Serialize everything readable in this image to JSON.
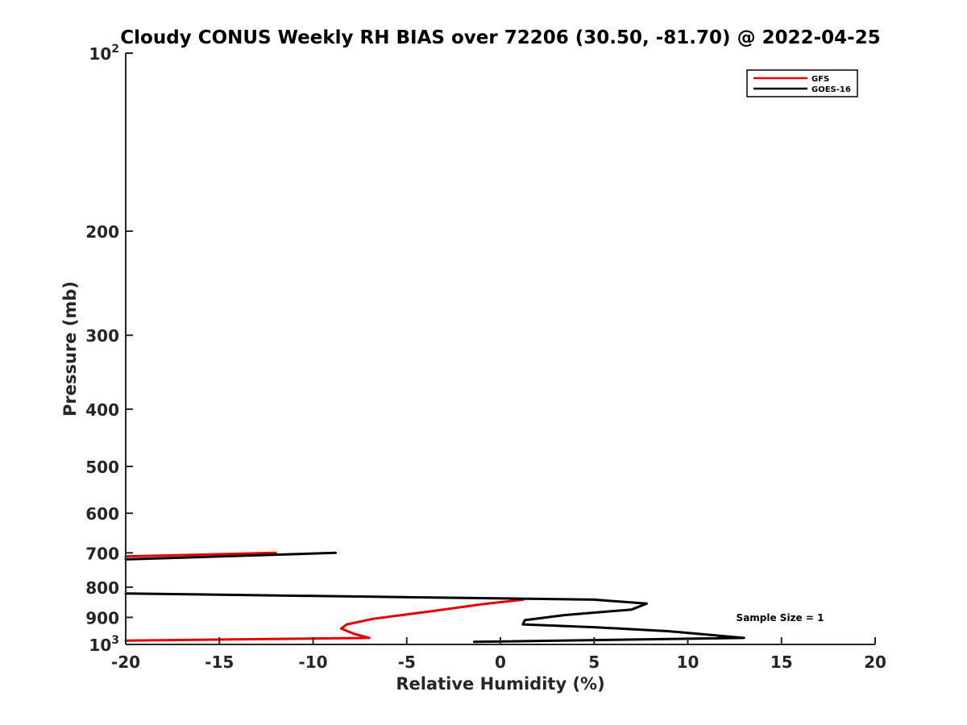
{
  "chart_data": {
    "type": "line",
    "title": "Cloudy CONUS Weekly RH BIAS over 72206 (30.50, -81.70) @ 2022-04-25",
    "xlabel": "Relative Humidity (%)",
    "ylabel": "Pressure (mb)",
    "xlim": [
      -20,
      20
    ],
    "ylim": [
      100,
      1000
    ],
    "yscale": "log",
    "y_reversed": true,
    "x_ticks": [
      -20,
      -15,
      -10,
      -5,
      0,
      5,
      10,
      15,
      20
    ],
    "x_tick_labels": [
      "-20",
      "-15",
      "-10",
      "-5",
      "0",
      "5",
      "10",
      "15",
      "20"
    ],
    "y_ticks": [
      100,
      200,
      300,
      400,
      500,
      600,
      700,
      800,
      900,
      1000
    ],
    "y_tick_labels": [
      {
        "base": "10",
        "exp": "2"
      },
      {
        "text": "200"
      },
      {
        "text": "300"
      },
      {
        "text": "400"
      },
      {
        "text": "500"
      },
      {
        "text": "600"
      },
      {
        "text": "700"
      },
      {
        "text": "800"
      },
      {
        "text": "900"
      },
      {
        "base": "10",
        "exp": "3"
      }
    ],
    "legend_position": "top-right",
    "series": [
      {
        "name": "GFS",
        "color": "#e60000",
        "segments": [
          [
            [
              -12.0,
              700
            ],
            [
              -20.0,
              710
            ]
          ],
          [
            [
              1.2,
              840
            ],
            [
              -1.0,
              855
            ],
            [
              -3.6,
              878
            ],
            [
              -6.8,
              905
            ],
            [
              -8.2,
              925
            ],
            [
              -8.5,
              940
            ],
            [
              -7.8,
              960
            ],
            [
              -7.0,
              975
            ],
            [
              -20.0,
              985
            ]
          ]
        ]
      },
      {
        "name": "GOES-16",
        "color": "#000000",
        "segments": [
          [
            [
              -8.8,
              700
            ],
            [
              -20.0,
              718
            ]
          ],
          [
            [
              -20.0,
              820
            ],
            [
              5.0,
              840
            ],
            [
              7.8,
              853
            ],
            [
              7.0,
              873
            ],
            [
              3.4,
              892
            ],
            [
              1.3,
              910
            ],
            [
              1.2,
              925
            ],
            [
              5.0,
              935
            ],
            [
              9.0,
              950
            ],
            [
              13.0,
              975
            ],
            [
              -1.4,
              990
            ]
          ]
        ]
      }
    ],
    "annotations": [
      {
        "text": "Sample Size = 1",
        "x": 15,
        "y": 900
      }
    ]
  }
}
